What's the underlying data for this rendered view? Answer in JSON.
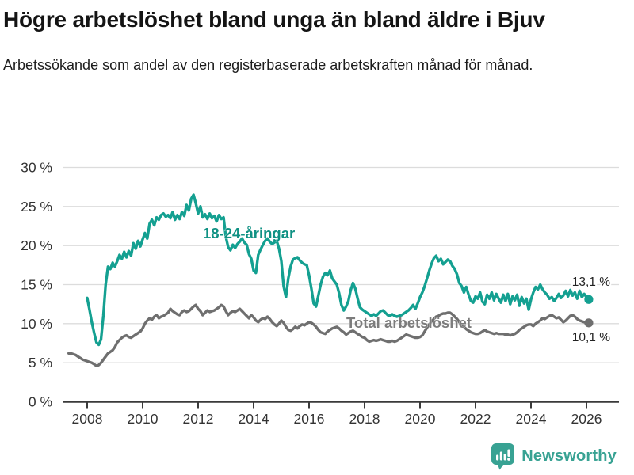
{
  "title": "Högre arbetslöshet bland unga än bland äldre i Bjuv",
  "subtitle": "Arbetssökande som andel av den registerbaserade arbetskraften månad för månad.",
  "footer": {
    "brand": "Newsworthy",
    "logo_icon": "bar-chart-speech-bubble-icon"
  },
  "colors": {
    "youth_line": "#14a091",
    "youth_label": "#0f9183",
    "total_line": "#6f6f6f",
    "total_label": "#7c7c7c",
    "grid": "#dcdcdc",
    "axis": "#3a3a3a",
    "tick_text": "#333333",
    "value_text": "#222222",
    "brand": "#38a293"
  },
  "chart_data": {
    "type": "line",
    "title": "Högre arbetslöshet bland unga än bland äldre i Bjuv",
    "subtitle": "Arbetssökande som andel av den registerbaserade arbetskraften månad för månad.",
    "unit": "%",
    "grid": true,
    "legend": "inline-labels",
    "y_axis": {
      "min": 0,
      "max": 30,
      "tick_values": [
        0,
        5,
        10,
        15,
        20,
        25,
        30
      ],
      "tick_labels": [
        "0 %",
        "5 %",
        "10 %",
        "15 %",
        "20 %",
        "25 %",
        "30 %"
      ]
    },
    "x_axis": {
      "min": 2007.33,
      "max": 2026.42,
      "tick_values": [
        2008,
        2010,
        2012,
        2014,
        2016,
        2018,
        2020,
        2022,
        2024,
        2026
      ],
      "tick_labels": [
        "2008",
        "2010",
        "2012",
        "2014",
        "2016",
        "2018",
        "2020",
        "2022",
        "2024",
        "2026"
      ]
    },
    "series": [
      {
        "name": "18-24-åringar",
        "color_key": "youth_line",
        "label_color_key": "youth_label",
        "start_year": 2008,
        "start_month": 1,
        "frequency": "monthly",
        "end_label": "13,1 %",
        "end_value": 13.1,
        "values": [
          13.3,
          11.8,
          10.2,
          8.8,
          7.6,
          7.3,
          8.0,
          11.0,
          15.0,
          17.3,
          17.0,
          17.8,
          17.3,
          18.0,
          18.8,
          18.3,
          19.2,
          18.5,
          19.3,
          18.7,
          20.3,
          19.6,
          20.6,
          19.9,
          20.8,
          21.6,
          20.9,
          22.8,
          23.3,
          22.6,
          23.6,
          23.3,
          23.9,
          24.1,
          23.7,
          23.9,
          23.5,
          24.3,
          23.3,
          23.9,
          23.4,
          24.3,
          23.8,
          25.2,
          24.5,
          26.0,
          26.5,
          25.4,
          24.1,
          25.0,
          23.6,
          24.0,
          23.4,
          24.1,
          23.5,
          23.8,
          23.1,
          23.9,
          23.4,
          23.6,
          21.1,
          19.8,
          19.4,
          20.1,
          19.7,
          20.2,
          20.5,
          20.9,
          20.4,
          20.1,
          18.9,
          18.3,
          16.8,
          16.5,
          18.8,
          19.5,
          20.1,
          20.6,
          20.9,
          20.5,
          20.2,
          20.4,
          20.6,
          19.6,
          18.0,
          14.8,
          13.4,
          15.8,
          17.3,
          18.2,
          18.4,
          18.5,
          18.1,
          17.8,
          17.6,
          17.5,
          16.2,
          14.5,
          12.6,
          12.2,
          13.6,
          15.0,
          16.0,
          16.5,
          16.2,
          16.8,
          15.8,
          15.4,
          15.0,
          13.9,
          12.4,
          11.7,
          12.2,
          12.9,
          14.3,
          15.2,
          14.5,
          13.2,
          12.1,
          11.8,
          11.6,
          11.4,
          11.2,
          11.0,
          11.2,
          11.0,
          11.3,
          11.6,
          11.7,
          11.4,
          11.1,
          11.0,
          11.2,
          11.0,
          10.9,
          11.0,
          11.1,
          11.3,
          11.5,
          11.7,
          12.0,
          12.4,
          11.9,
          12.6,
          13.4,
          14.0,
          14.8,
          15.8,
          16.8,
          17.7,
          18.4,
          18.7,
          18.0,
          18.3,
          17.6,
          17.9,
          18.2,
          18.0,
          17.4,
          17.0,
          16.3,
          15.2,
          14.8,
          14.0,
          14.7,
          13.7,
          12.9,
          12.7,
          13.5,
          13.2,
          14.0,
          12.8,
          12.5,
          13.7,
          13.2,
          14.0,
          13.0,
          13.8,
          13.2,
          12.7,
          13.7,
          12.9,
          13.8,
          12.5,
          13.5,
          13.0,
          13.7,
          12.3,
          13.4,
          12.6,
          13.2,
          11.8,
          13.1,
          14.0,
          14.7,
          14.4,
          15.0,
          14.4,
          14.0,
          13.7,
          13.2,
          13.4,
          12.9,
          13.3,
          13.8,
          13.3,
          13.6,
          14.2,
          13.5,
          14.3,
          13.6,
          14.0,
          13.2,
          14.2,
          13.4,
          13.8,
          13.4,
          13.1
        ]
      },
      {
        "name": "Total arbetslöshet",
        "color_key": "total_line",
        "label_color_key": "total_label",
        "start_year": 2007,
        "start_month": 5,
        "frequency": "monthly",
        "end_label": "10,1 %",
        "end_value": 10.1,
        "values": [
          6.2,
          6.2,
          6.1,
          6.0,
          5.8,
          5.6,
          5.4,
          5.3,
          5.2,
          5.1,
          5.0,
          4.8,
          4.6,
          4.7,
          5.0,
          5.4,
          5.8,
          6.2,
          6.4,
          6.6,
          7.0,
          7.6,
          7.9,
          8.2,
          8.4,
          8.5,
          8.3,
          8.2,
          8.4,
          8.6,
          8.8,
          9.0,
          9.4,
          10.0,
          10.4,
          10.7,
          10.5,
          10.9,
          11.1,
          10.7,
          10.9,
          11.0,
          11.2,
          11.4,
          11.9,
          11.6,
          11.4,
          11.2,
          11.1,
          11.5,
          11.7,
          11.5,
          11.6,
          11.9,
          12.2,
          12.4,
          11.9,
          11.6,
          11.1,
          11.4,
          11.7,
          11.5,
          11.6,
          11.7,
          11.9,
          12.1,
          12.4,
          12.2,
          11.6,
          11.1,
          11.4,
          11.6,
          11.5,
          11.7,
          11.9,
          11.6,
          11.3,
          11.0,
          10.7,
          11.1,
          10.8,
          10.4,
          10.2,
          10.5,
          10.7,
          10.6,
          10.9,
          10.6,
          10.2,
          9.9,
          9.7,
          10.0,
          10.4,
          10.1,
          9.6,
          9.2,
          9.1,
          9.3,
          9.6,
          9.4,
          9.7,
          9.9,
          9.8,
          10.0,
          10.2,
          10.1,
          9.9,
          9.6,
          9.2,
          8.9,
          8.8,
          8.7,
          9.0,
          9.2,
          9.4,
          9.5,
          9.6,
          9.4,
          9.1,
          8.9,
          8.6,
          8.8,
          9.0,
          9.1,
          8.9,
          8.7,
          8.5,
          8.3,
          8.2,
          7.9,
          7.7,
          7.8,
          7.9,
          7.8,
          7.9,
          8.0,
          7.9,
          7.8,
          7.7,
          7.7,
          7.8,
          7.7,
          7.8,
          8.0,
          8.2,
          8.4,
          8.6,
          8.5,
          8.4,
          8.3,
          8.2,
          8.2,
          8.3,
          8.5,
          9.0,
          9.5,
          9.9,
          10.3,
          10.6,
          10.9,
          11.0,
          11.2,
          11.3,
          11.3,
          11.4,
          11.4,
          11.2,
          10.9,
          10.6,
          10.2,
          9.9,
          9.6,
          9.3,
          9.1,
          8.9,
          8.8,
          8.7,
          8.7,
          8.8,
          9.0,
          9.2,
          9.0,
          8.9,
          8.8,
          8.7,
          8.8,
          8.7,
          8.7,
          8.7,
          8.6,
          8.6,
          8.5,
          8.6,
          8.7,
          8.9,
          9.2,
          9.4,
          9.6,
          9.8,
          9.9,
          9.9,
          9.7,
          10.0,
          10.2,
          10.4,
          10.7,
          10.6,
          10.8,
          11.0,
          11.1,
          10.9,
          10.7,
          10.8,
          10.5,
          10.2,
          10.4,
          10.7,
          11.0,
          11.1,
          10.9,
          10.6,
          10.4,
          10.3,
          10.2,
          10.1,
          10.1
        ]
      }
    ]
  }
}
